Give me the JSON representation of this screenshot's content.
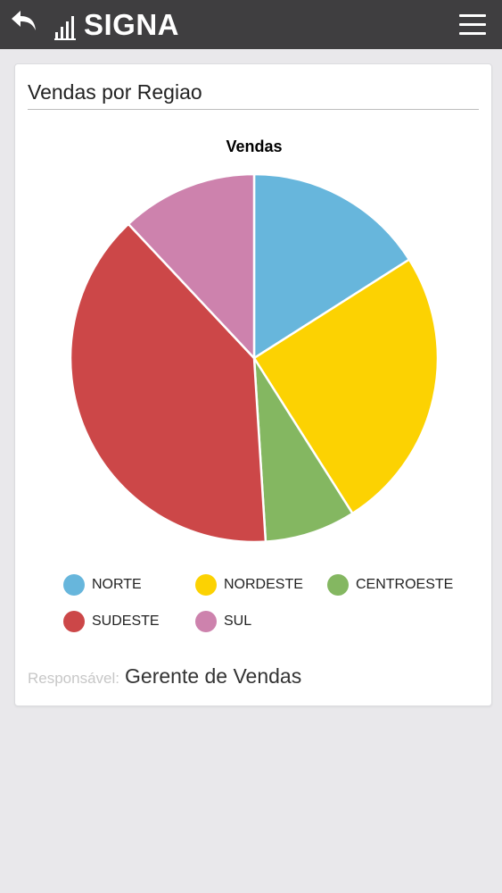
{
  "header": {
    "logo_text": "SIGNA",
    "back_icon": "back-arrow-icon",
    "menu_icon": "hamburger-menu-icon",
    "logo_icon": "bar-chart-logo-icon"
  },
  "card": {
    "title": "Vendas por Regiao",
    "responsible_label": "Responsável:",
    "responsible_value": "Gerente de Vendas"
  },
  "chart_data": {
    "type": "pie",
    "title": "Vendas",
    "categories": [
      "NORTE",
      "NORDESTE",
      "CENTROESTE",
      "SUDESTE",
      "SUL"
    ],
    "values": [
      16,
      25,
      8,
      39,
      12
    ],
    "colors": [
      "#67b6dc",
      "#fcd202",
      "#84b761",
      "#cc4748",
      "#cd82ad"
    ],
    "start": "12 o'clock",
    "direction": "clockwise",
    "legend_position": "bottom"
  }
}
